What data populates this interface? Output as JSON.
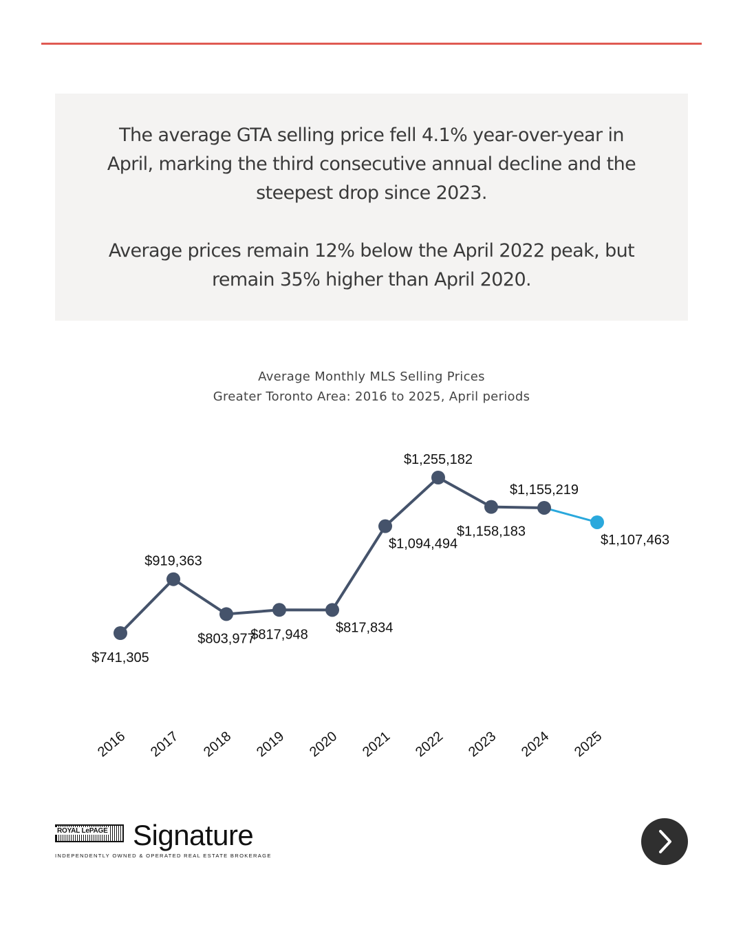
{
  "summary": {
    "paragraph1": "The average GTA selling price fell 4.1% year-over-year in April, marking the third consecutive annual decline and the steepest drop since 2023.",
    "paragraph2": "Average prices remain 12% below the April 2022 peak, but remain 35% higher than April 2020."
  },
  "colors": {
    "accent_rule": "#e05a52",
    "series_line": "#45536b",
    "highlight": "#2aa8dc",
    "panel": "#f4f3f2"
  },
  "chart_data": {
    "type": "line",
    "title": "Average Monthly MLS Selling Prices",
    "subtitle": "Greater Toronto Area: 2016 to 2025, April periods",
    "x": [
      "2016",
      "2017",
      "2018",
      "2019",
      "2020",
      "2021",
      "2022",
      "2023",
      "2024",
      "2025"
    ],
    "values": [
      741305,
      919363,
      803977,
      817948,
      817834,
      1094494,
      1255182,
      1158183,
      1155219,
      1107463
    ],
    "data_labels": [
      "$741,305",
      "$919,363",
      "$803,977",
      "$817,948",
      "$817,834",
      "$1,094,494",
      "$1,255,182",
      "$1,158,183",
      "$1,155,219",
      "$1,107,463"
    ],
    "label_placement": [
      "below",
      "above",
      "below",
      "below",
      "below-right",
      "below-right",
      "above",
      "below",
      "above",
      "below-right"
    ],
    "highlight_last_point": true,
    "grid": false,
    "legend": "none",
    "y_axis_visible": false
  },
  "brand": {
    "mark": "ROYAL LePAGE",
    "name": "Signature",
    "tagline": "INDEPENDENTLY OWNED & OPERATED REAL ESTATE BROKERAGE"
  },
  "navigation": {
    "next_icon": "chevron-right-icon"
  }
}
